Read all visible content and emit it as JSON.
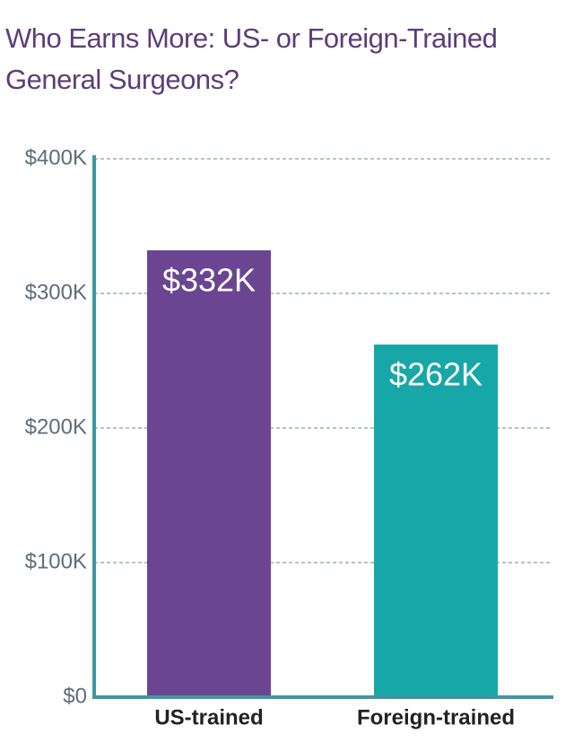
{
  "chart_data": {
    "type": "bar",
    "title": "Who Earns More: US- or Foreign-Trained General Surgeons?",
    "categories": [
      "US-trained",
      "Foreign-trained"
    ],
    "values": [
      332000,
      262000
    ],
    "value_labels": [
      "$332K",
      "$262K"
    ],
    "colors": [
      "#6b4592",
      "#17a7a6"
    ],
    "ylim": [
      0,
      400000
    ],
    "yticks": [
      {
        "value": 0,
        "label": "$0"
      },
      {
        "value": 100000,
        "label": "$100K"
      },
      {
        "value": 200000,
        "label": "$200K"
      },
      {
        "value": 300000,
        "label": "$300K"
      },
      {
        "value": 400000,
        "label": "$400K"
      }
    ],
    "grid": true
  }
}
